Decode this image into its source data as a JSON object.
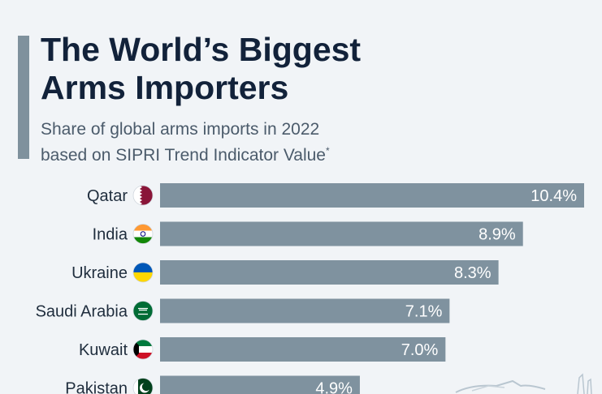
{
  "header": {
    "title_line1": "The World’s Biggest",
    "title_line2": "Arms Importers",
    "subtitle_line1": "Share of global arms imports in 2022",
    "subtitle_line2": "based on SIPRI Trend Indicator Value",
    "footnote_mark": "*"
  },
  "colors": {
    "bar": "#7f929f",
    "title": "#12223a",
    "background": "#f1f4f7"
  },
  "chart_data": {
    "type": "bar",
    "orientation": "horizontal",
    "categories": [
      "Qatar",
      "India",
      "Ukraine",
      "Saudi Arabia",
      "Kuwait",
      "Pakistan"
    ],
    "values": [
      10.4,
      8.9,
      8.3,
      7.1,
      7.0,
      4.9
    ],
    "value_labels": [
      "10.4%",
      "8.9%",
      "8.3%",
      "7.1%",
      "7.0%",
      "4.9%"
    ],
    "flags": [
      "qatar-flag-icon",
      "india-flag-icon",
      "ukraine-flag-icon",
      "saudi-arabia-flag-icon",
      "kuwait-flag-icon",
      "pakistan-flag-icon"
    ],
    "title": "The World’s Biggest Arms Importers",
    "unit": "%",
    "grid": false,
    "legend": "none"
  }
}
